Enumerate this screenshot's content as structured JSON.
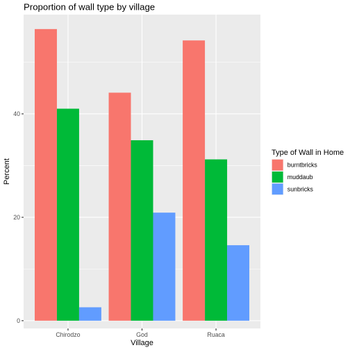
{
  "chart_data": {
    "type": "bar",
    "title": "Proportion of wall type by village",
    "xlabel": "Village",
    "ylabel": "Percent",
    "categories": [
      "Chirodzo",
      "God",
      "Ruaca"
    ],
    "series": [
      {
        "name": "burntbricks",
        "color": "#F8766D",
        "values": [
          56.4,
          44.1,
          54.2
        ]
      },
      {
        "name": "muddaub",
        "color": "#00BA38",
        "values": [
          41.0,
          34.9,
          31.2
        ]
      },
      {
        "name": "sunbricks",
        "color": "#619CFF",
        "values": [
          2.6,
          20.9,
          14.6
        ]
      }
    ],
    "ylim": [
      -1.5,
      59.2
    ],
    "yticks": [
      0,
      20,
      40
    ],
    "ytick_labels": [
      "0",
      "20",
      "40"
    ],
    "grid": true,
    "legend": {
      "title": "Type of Wall in Home",
      "position": "right"
    },
    "panel_background": "#EBEBEB",
    "grid_color": "#FFFFFF"
  }
}
